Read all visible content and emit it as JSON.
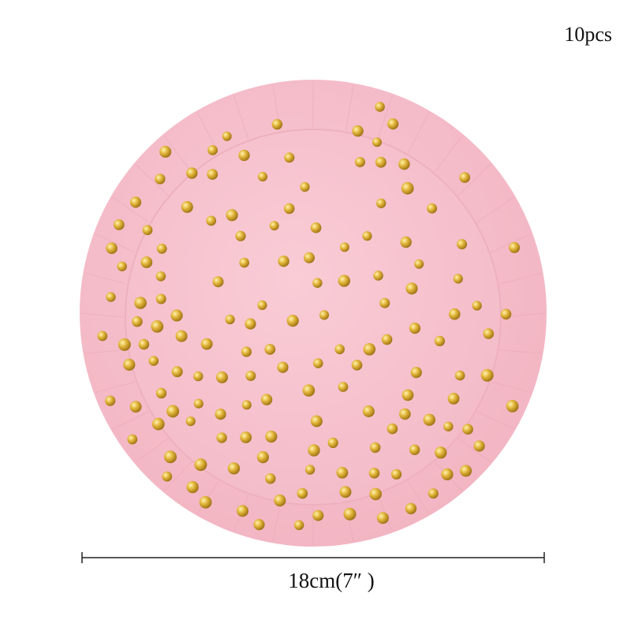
{
  "labels": {
    "quantity": "10pcs",
    "size": "18cm(7″ )"
  }
}
